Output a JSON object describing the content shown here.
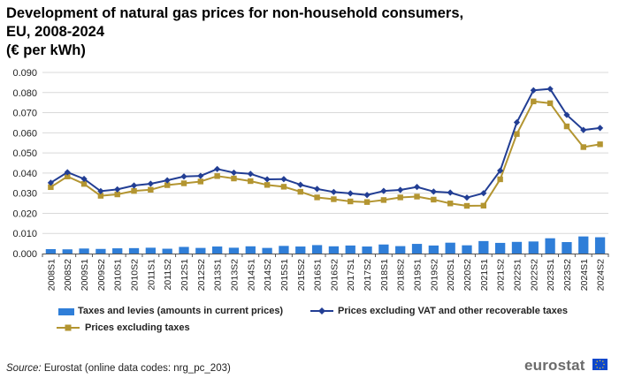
{
  "title": {
    "line1": "Development of natural gas prices for non-household consumers,",
    "line2": "EU, 2008-2024",
    "line3": "(€ per kWh)"
  },
  "source": {
    "label": "Source:",
    "text": "Eurostat (online data codes: nrg_pc_203)"
  },
  "logo": {
    "text": "eurostat"
  },
  "colors": {
    "bars": "#2f7ed8",
    "line_vat": "#223e94",
    "line_taxes": "#b39531",
    "grid": "#d9d9d9",
    "axis": "#555555"
  },
  "chart_data": {
    "type": "bar+line",
    "categories": [
      "2008S1",
      "2008S2",
      "2009S1",
      "2009S2",
      "2010S1",
      "2010S2",
      "2011S1",
      "2011S2",
      "2012S1",
      "2012S2",
      "2013S1",
      "2013S2",
      "2014S1",
      "2014S2",
      "2015S1",
      "2015S2",
      "2016S1",
      "2016S2",
      "2017S1",
      "2017S2",
      "2018S1",
      "2018S2",
      "2019S1",
      "2019S2",
      "2020S1",
      "2020S2",
      "2021S1",
      "2021S2",
      "2022S1",
      "2022S2",
      "2023S1",
      "2023S2",
      "2024S1",
      "2024S2"
    ],
    "ylim": [
      0,
      0.09
    ],
    "yticks": [
      "0.000",
      "0.010",
      "0.020",
      "0.030",
      "0.040",
      "0.050",
      "0.060",
      "0.070",
      "0.080",
      "0.090"
    ],
    "grid": true,
    "legend_position": "bottom",
    "series": [
      {
        "name": "Taxes and levies (amounts in current prices)",
        "type": "bar",
        "values": [
          0.0022,
          0.0021,
          0.0025,
          0.0023,
          0.0026,
          0.0027,
          0.0029,
          0.0024,
          0.0033,
          0.0028,
          0.0035,
          0.0029,
          0.0036,
          0.0028,
          0.0038,
          0.0035,
          0.0042,
          0.0036,
          0.004,
          0.0035,
          0.0045,
          0.0037,
          0.0048,
          0.004,
          0.0054,
          0.0041,
          0.0062,
          0.0053,
          0.0058,
          0.006,
          0.0076,
          0.0057,
          0.0085,
          0.0081
        ]
      },
      {
        "name": "Prices excluding VAT and other recoverable taxes",
        "type": "line",
        "marker": "diamond",
        "values": [
          0.0352,
          0.0404,
          0.0371,
          0.031,
          0.0319,
          0.0338,
          0.0347,
          0.0364,
          0.0383,
          0.0386,
          0.042,
          0.0402,
          0.0396,
          0.0369,
          0.037,
          0.0342,
          0.0321,
          0.0306,
          0.0299,
          0.0291,
          0.0311,
          0.0316,
          0.0331,
          0.0308,
          0.0303,
          0.0278,
          0.03,
          0.0412,
          0.0652,
          0.0811,
          0.0818,
          0.0689,
          0.0614,
          0.0624
        ]
      },
      {
        "name": "Prices excluding taxes",
        "type": "line",
        "marker": "square",
        "values": [
          0.033,
          0.0383,
          0.0346,
          0.0287,
          0.0294,
          0.0311,
          0.0317,
          0.034,
          0.0349,
          0.0358,
          0.0385,
          0.0373,
          0.036,
          0.0341,
          0.0332,
          0.0307,
          0.0279,
          0.027,
          0.0259,
          0.0256,
          0.0266,
          0.0279,
          0.0283,
          0.0268,
          0.0249,
          0.0237,
          0.0238,
          0.0369,
          0.0594,
          0.0756,
          0.0747,
          0.0632,
          0.0529,
          0.0543
        ]
      }
    ]
  }
}
